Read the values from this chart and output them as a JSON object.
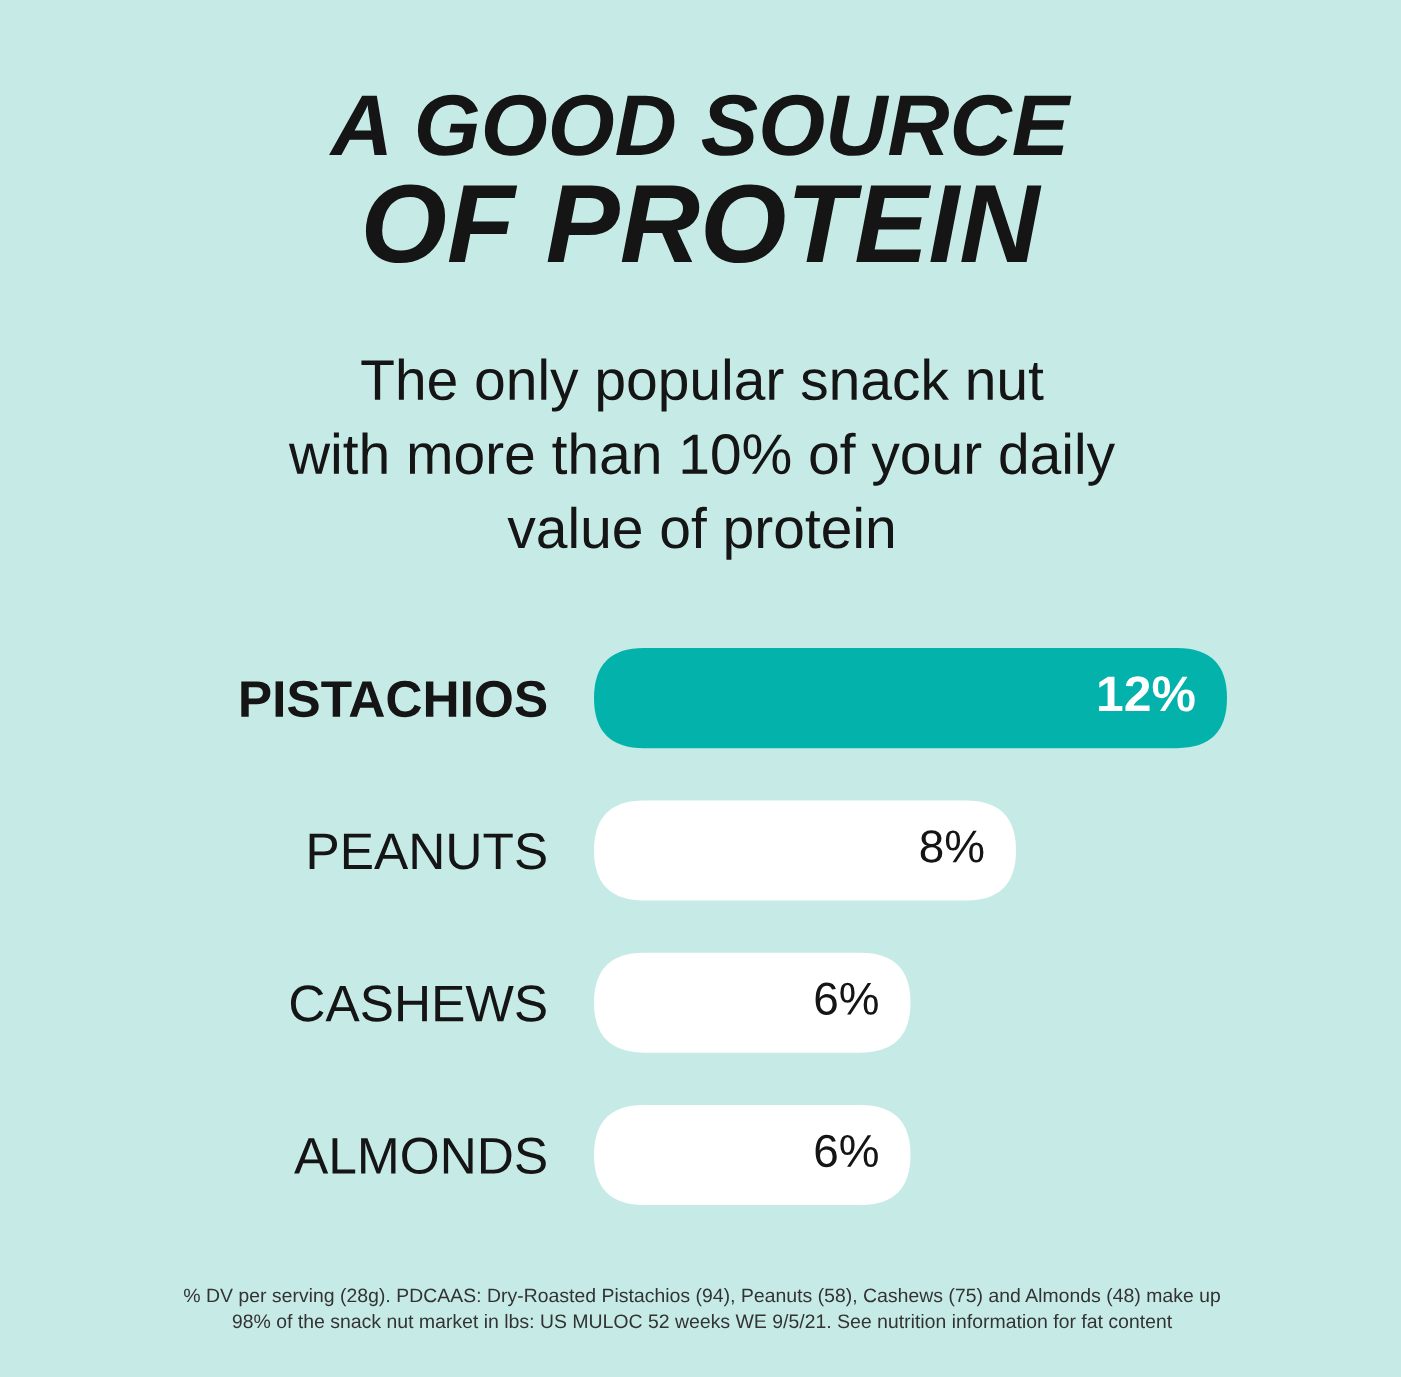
{
  "chart_data": {
    "type": "bar",
    "orientation": "horizontal",
    "title": "A GOOD SOURCE\nOF PROTEIN",
    "subtitle": "The only popular snack nut\nwith more than 10% of your daily\nvalue of protein",
    "categories": [
      "PISTACHIOS",
      "PEANUTS",
      "CASHEWS",
      "ALMONDS"
    ],
    "values": [
      12,
      8,
      6,
      6
    ],
    "colors": [
      "#02b2ab",
      "#ffffff",
      "#ffffff",
      "#ffffff"
    ],
    "value_labels": [
      "12%",
      "8%",
      "6%",
      "6%"
    ],
    "tick_labels": "y",
    "annotations": [
      "% DV per serving (28g). PDCAAS: Dry-Roasted Pistachios (94), Peanuts (58), Cashews (75) and Almonds (48) make up\n98% of the snack nut market in lbs: US MULOC 52 weeks WE 9/5/21. See nutrition information for fat content"
    ]
  }
}
